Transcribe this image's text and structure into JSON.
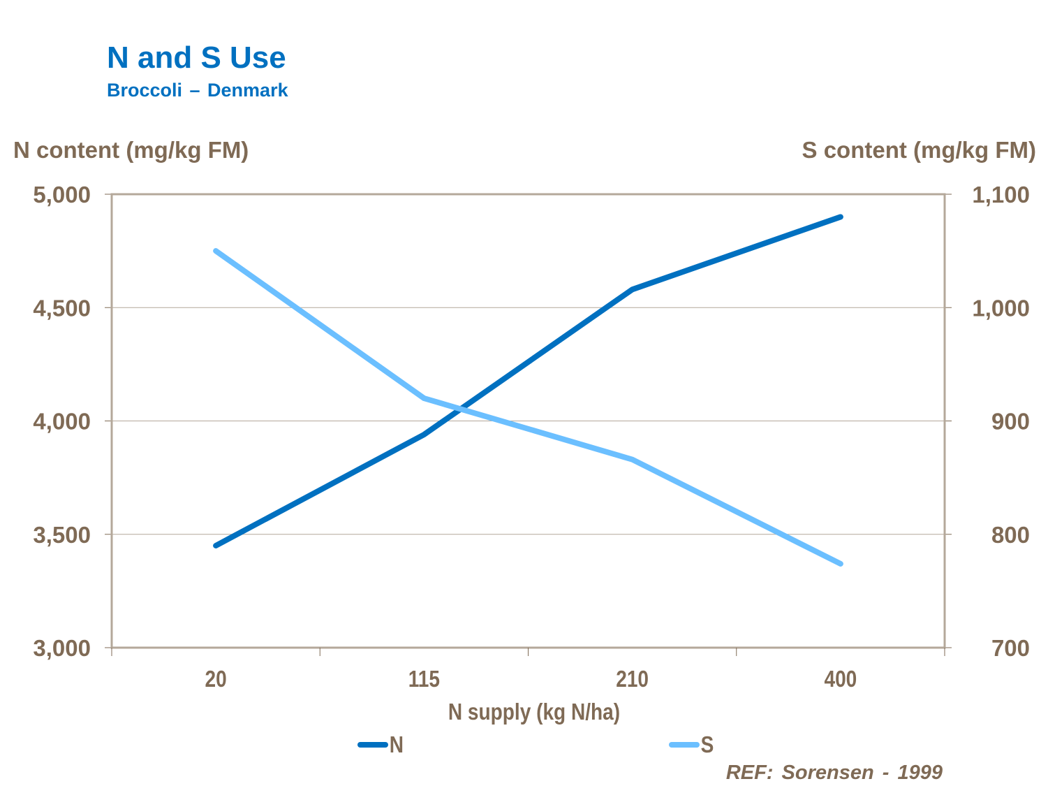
{
  "header": {
    "title": "N and S Use",
    "subtitle": "Broccoli – Denmark"
  },
  "reference": "REF: Sorensen  - 1999",
  "colors": {
    "N": "#0070c0",
    "S": "#6bbfff",
    "axis_text": "#7f6a55",
    "axis_line": "#b4a89a",
    "grid": "#b4a89a"
  },
  "chart_data": {
    "type": "line",
    "title": "N and S Use",
    "subtitle": "Broccoli – Denmark",
    "xlabel": "N supply (kg N/ha)",
    "ylabel": "N content (mg/kg FM)",
    "y2label": "S content (mg/kg FM)",
    "categories": [
      "20",
      "115",
      "210",
      "400"
    ],
    "ylim": [
      3000,
      5000
    ],
    "y2lim": [
      700,
      1100
    ],
    "yticks": [
      "3,000",
      "3,500",
      "4,000",
      "4,500",
      "5,000"
    ],
    "y2ticks": [
      "700",
      "800",
      "900",
      "1,000",
      "1,100"
    ],
    "grid": true,
    "legend": "bottom",
    "series": [
      {
        "name": "N",
        "axis": "left",
        "values": [
          3450,
          3940,
          4580,
          4900
        ]
      },
      {
        "name": "S",
        "axis": "right",
        "values": [
          1050,
          920,
          866,
          774
        ]
      }
    ]
  }
}
